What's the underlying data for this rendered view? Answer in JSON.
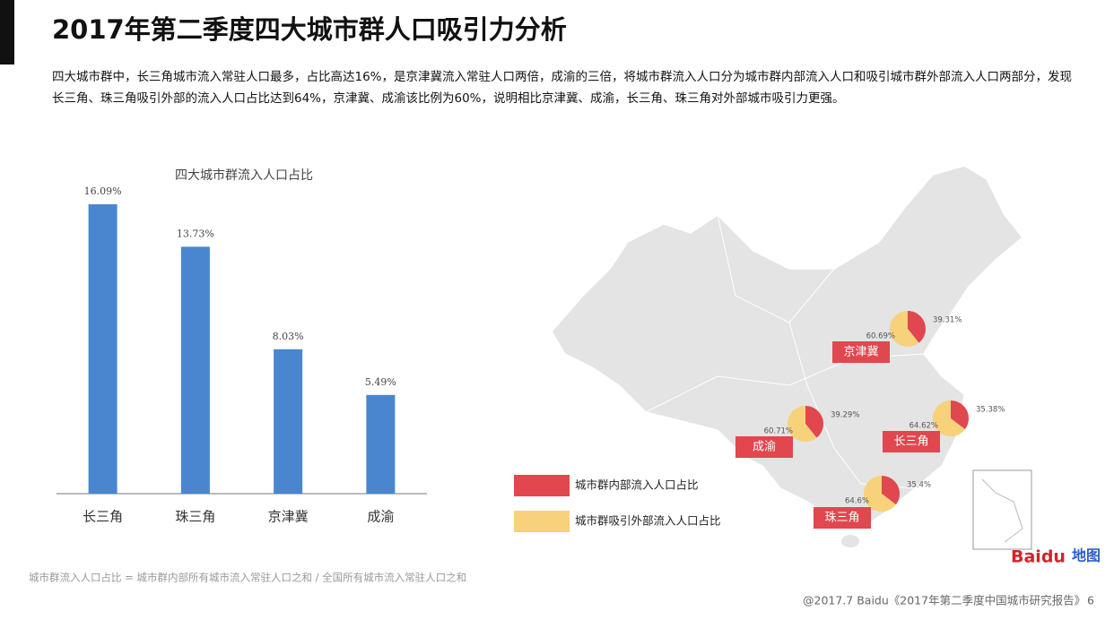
{
  "header": {
    "title": "2017年第二季度四大城市群人口吸引力分析",
    "description": "四大城市群中，长三角城市流入常驻人口最多，占比高达16%，是京津冀流入常驻人口两倍，成渝的三倍，将城市群流入人口分为城市群内部流入人口和吸引城市群外部流入人口两部分，发现长三角、珠三角吸引外部的流入人口占比达到64%，京津冀、成渝该比例为60%，说明相比京津冀、成渝，长三角、珠三角对外部城市吸引力更强。"
  },
  "chart_data": [
    {
      "type": "bar",
      "title": "四大城市群流入人口占比",
      "categories": [
        "长三角",
        "珠三角",
        "京津冀",
        "成渝"
      ],
      "values": [
        16.09,
        13.73,
        8.03,
        5.49
      ],
      "value_labels": [
        "16.09%",
        "13.73%",
        "8.03%",
        "5.49%"
      ],
      "color": "#4a86d0"
    },
    {
      "type": "pie",
      "categories": [
        "京津冀",
        "成渝",
        "长三角",
        "珠三角"
      ],
      "series": [
        {
          "name": "城市群内部流入人口占比",
          "color": "#e0474f",
          "values": [
            39.31,
            39.29,
            35.38,
            35.4
          ],
          "value_labels": [
            "39.31%",
            "39.29%",
            "35.38%",
            "35.4%"
          ]
        },
        {
          "name": "城市群吸引外部流入人口占比",
          "color": "#f7d27a",
          "values": [
            60.69,
            60.71,
            64.62,
            64.6
          ],
          "value_labels": [
            "60.69%",
            "60.71%",
            "64.62%",
            "64.6%"
          ]
        }
      ]
    }
  ],
  "footnote": "城市群流入人口占比 = 城市群内部所有城市流入常驻人口之和 / 全国所有城市流入常驻人口之和",
  "footer": {
    "source": "@2017.7 Baidu《2017年第二季度中国城市研究报告》",
    "page": "6"
  },
  "logo": {
    "brand": "Baidu",
    "product": "地图"
  }
}
